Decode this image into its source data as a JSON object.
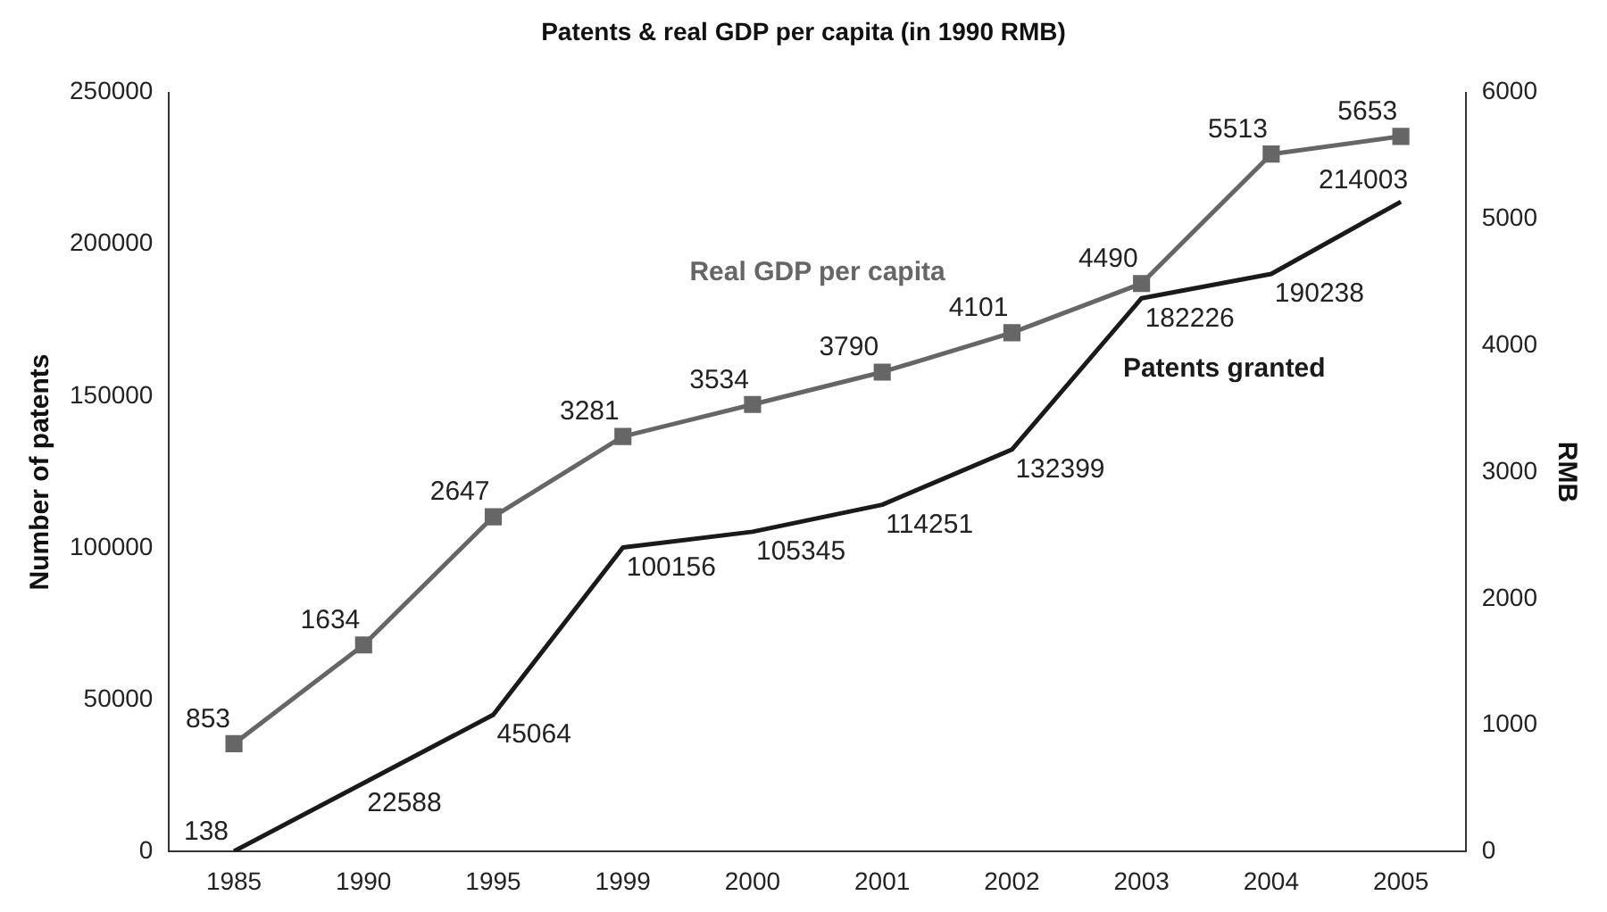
{
  "chart_data": {
    "type": "line",
    "title": "Patents & real GDP per capita (in 1990 RMB)",
    "ylabel": "Number of patents",
    "y2label": "RMB",
    "categories": [
      "1985",
      "1990",
      "1995",
      "1999",
      "2000",
      "2001",
      "2002",
      "2003",
      "2004",
      "2005"
    ],
    "series": [
      {
        "name": "Real GDP per capita",
        "color": "#666666",
        "axis": "y2",
        "marker": "square",
        "values": [
          853,
          1634,
          2647,
          3281,
          3534,
          3790,
          4101,
          4490,
          5513,
          5653
        ]
      },
      {
        "name": "Patents granted",
        "color": "#1a1a1a",
        "axis": "y",
        "marker": "none",
        "values": [
          138,
          22588,
          45064,
          100156,
          105345,
          114251,
          132399,
          182226,
          190238,
          214003
        ]
      }
    ],
    "ylim": [
      0,
      250000
    ],
    "yticks": [
      0,
      50000,
      100000,
      150000,
      200000,
      250000
    ],
    "y2lim": [
      0,
      6000
    ],
    "y2ticks": [
      0,
      1000,
      2000,
      3000,
      4000,
      5000,
      6000
    ],
    "data_labels": true,
    "grid": false,
    "legend": false,
    "line_style": "solid"
  }
}
